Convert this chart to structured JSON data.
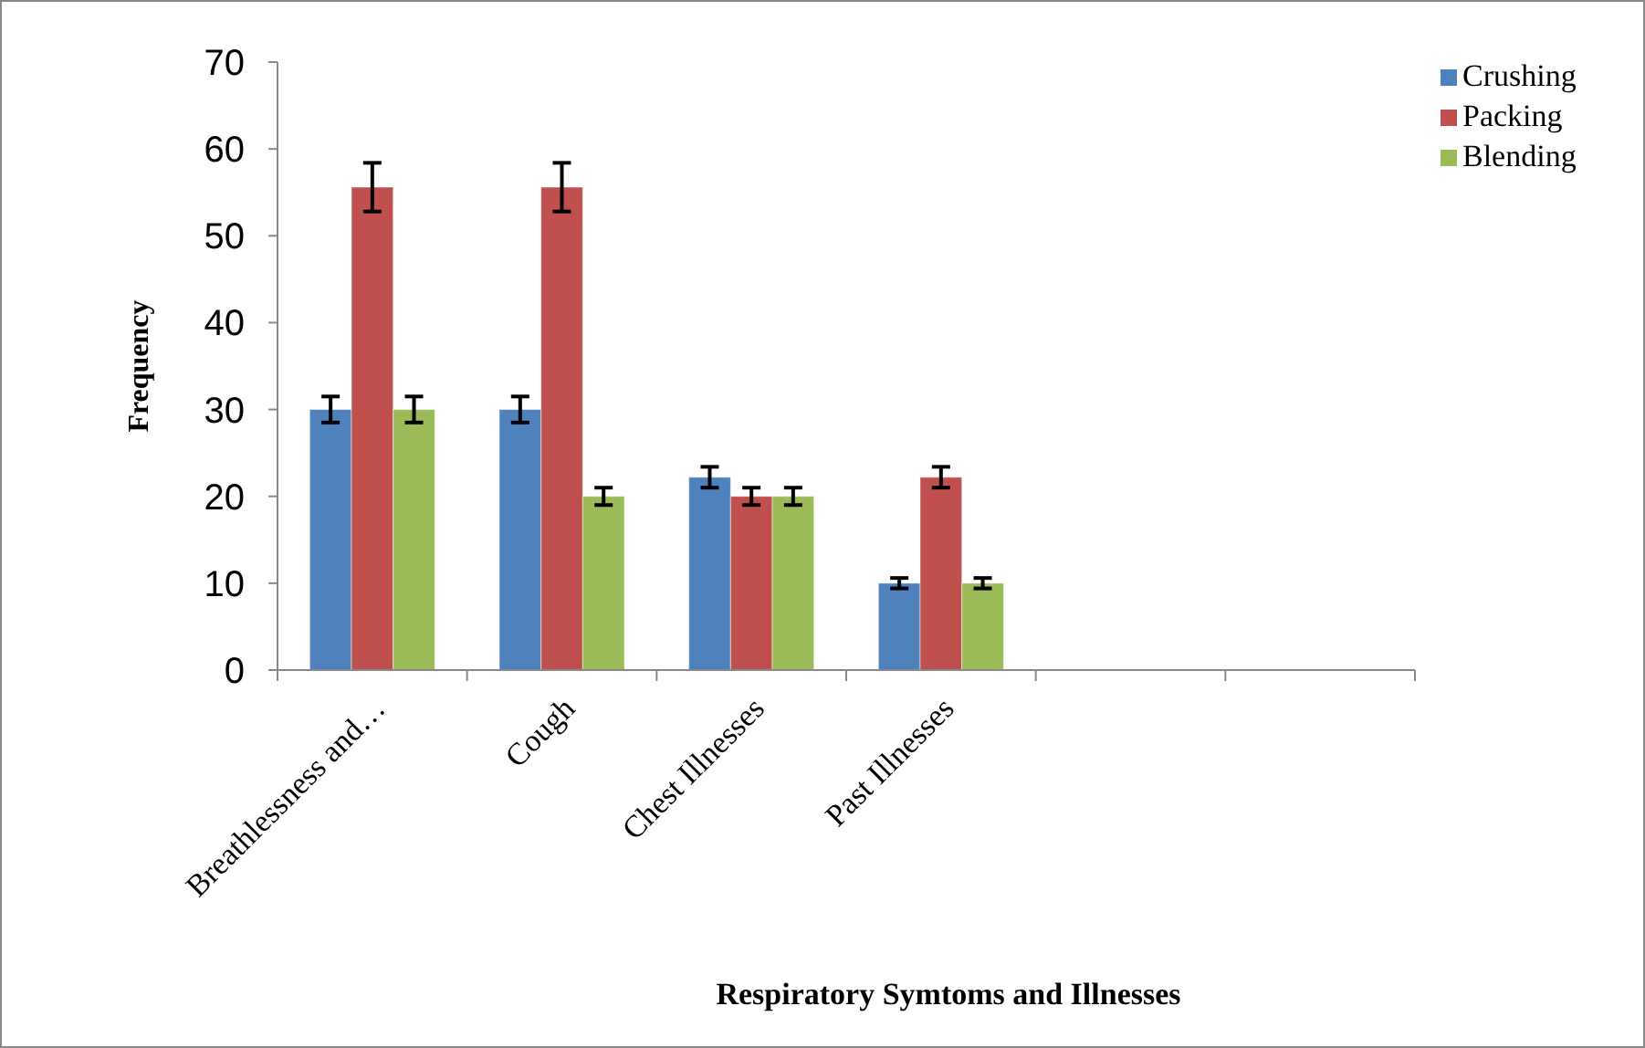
{
  "chart_data": {
    "type": "bar",
    "xlabel": "Respiratory Symtoms and Illnesses",
    "ylabel": "Frequency",
    "categories": [
      "Breathlessness and…",
      "Cough",
      "Chest Illnesses",
      "Past Illnesses",
      null,
      null
    ],
    "series": [
      {
        "name": "Crushing",
        "color": "#4f81bd",
        "values": [
          30,
          30,
          22.2,
          10,
          null,
          null
        ],
        "errors": [
          1.5,
          1.5,
          1.2,
          0.6,
          null,
          null
        ]
      },
      {
        "name": "Packing",
        "color": "#c0504d",
        "values": [
          55.6,
          55.6,
          20,
          22.2,
          null,
          null
        ],
        "errors": [
          2.8,
          2.8,
          1,
          1.2,
          null,
          null
        ]
      },
      {
        "name": "Blending",
        "color": "#9bbb59",
        "values": [
          30,
          20,
          20,
          10,
          null,
          null
        ],
        "errors": [
          1.5,
          1,
          1,
          0.6,
          null,
          null
        ]
      }
    ],
    "ylim": [
      0,
      70
    ],
    "yticks": [
      0,
      10,
      20,
      30,
      40,
      50,
      60,
      70
    ],
    "grid": false,
    "legend": "top right"
  }
}
